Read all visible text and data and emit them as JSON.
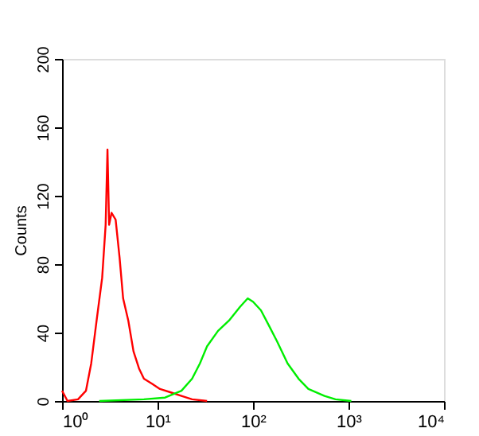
{
  "chart_data": {
    "type": "line",
    "ylabel": "Counts",
    "log": "x",
    "xlim": [
      1,
      10000
    ],
    "xticks": [
      {
        "value": 1,
        "label": "10⁰"
      },
      {
        "value": 10,
        "label": "10¹"
      },
      {
        "value": 100,
        "label": "10²"
      },
      {
        "value": 1000,
        "label": "10³"
      },
      {
        "value": 10000,
        "label": "10⁴"
      }
    ],
    "ylim": [
      0,
      200
    ],
    "yticks": [
      0,
      40,
      80,
      120,
      160,
      200
    ],
    "grid": false,
    "marker": "none",
    "line_style": "solid",
    "series": [
      {
        "color": "#ff0000",
        "x": [
          1,
          1.14,
          1.47,
          1.78,
          2.02,
          2.3,
          2.63,
          2.86,
          2.99,
          3.11,
          3.3,
          3.64,
          4.0,
          4.36,
          4.94,
          5.6,
          6.4,
          7.2,
          8.8,
          10.6,
          13.8,
          17.8,
          23,
          33
        ],
        "values": [
          6,
          0,
          1,
          6,
          22,
          47,
          72,
          103,
          147,
          103,
          110,
          106,
          84,
          60,
          47,
          29,
          19,
          13,
          10,
          7,
          5,
          3,
          1,
          0
        ]
      },
      {
        "color": "#00ee00",
        "x": [
          2.45,
          7.2,
          12,
          17.8,
          23,
          27.8,
          33,
          43,
          56,
          73,
          88,
          100,
          121,
          147,
          178,
          230,
          300,
          380,
          560,
          730,
          1070
        ],
        "values": [
          0,
          1,
          2,
          6,
          13,
          22,
          32,
          41,
          47,
          55,
          60,
          58,
          53,
          44,
          35,
          22,
          13,
          7,
          3,
          1,
          0
        ]
      }
    ]
  }
}
